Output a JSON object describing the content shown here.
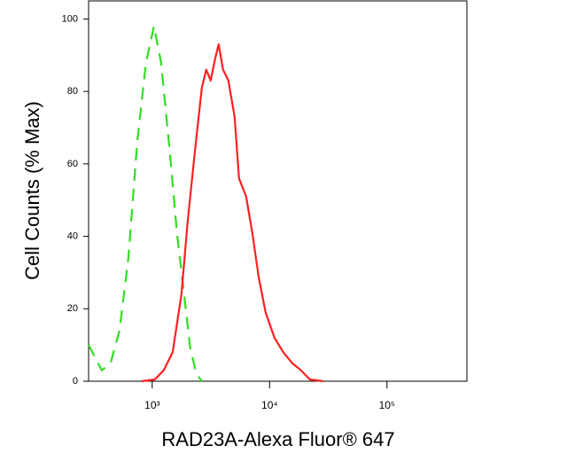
{
  "chart_data": {
    "type": "line",
    "xlabel": "RAD23A-Alexa Fluor® 647",
    "ylabel": "Cell Counts (% Max)",
    "xscale": "log",
    "xlim": [
      287,
      480000
    ],
    "ylim": [
      0,
      105
    ],
    "xticks": [
      {
        "value": 1000,
        "label": "10³"
      },
      {
        "value": 10000,
        "label": "10⁴"
      },
      {
        "value": 100000,
        "label": "10⁵"
      }
    ],
    "yticks": [
      0,
      20,
      40,
      60,
      80,
      100
    ],
    "series": [
      {
        "color": "#33dd22",
        "dash": true,
        "x": [
          287,
          372,
          442,
          526,
          626,
          745,
          885,
          1035,
          1190,
          1415,
          1625,
          1870,
          2110,
          2385,
          2650
        ],
        "values": [
          10,
          3,
          5,
          14,
          34,
          66,
          88,
          98,
          88,
          63,
          41,
          24,
          9,
          2,
          0
        ]
      },
      {
        "color": "#ff2020",
        "dash": false,
        "x": [
          811,
          1054,
          1253,
          1493,
          1775,
          2005,
          2302,
          2648,
          2885,
          3148,
          3436,
          3682,
          4016,
          4457,
          5034,
          5492,
          6310,
          7130,
          8053,
          9250,
          11010,
          13100,
          15570,
          18530,
          22030,
          28620
        ],
        "values": [
          0,
          0.5,
          3,
          8,
          24,
          44,
          63,
          81,
          86,
          83,
          89,
          93,
          86,
          83,
          73,
          56,
          51,
          41,
          29,
          19,
          12,
          8,
          5,
          3,
          0.5,
          0
        ]
      }
    ]
  }
}
